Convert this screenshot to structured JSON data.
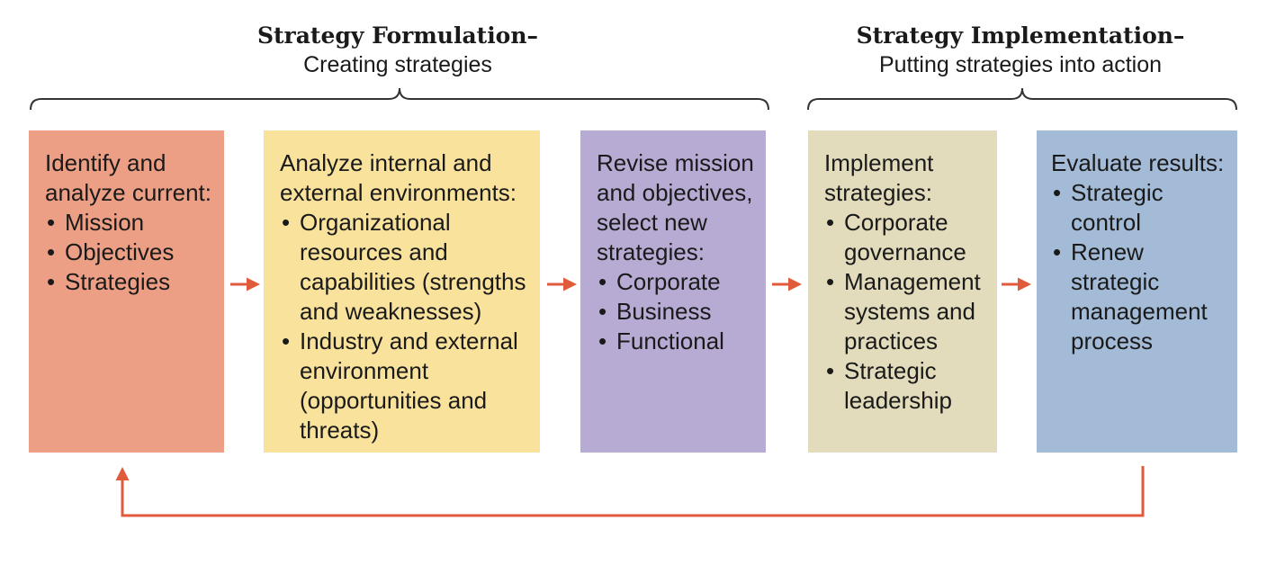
{
  "colors": {
    "arrow": "#e05a3c",
    "brace": "#333333",
    "box_1": "#ec9f84",
    "box_2": "#f9e39c",
    "box_3": "#b7abd4",
    "box_4": "#e2dcbc",
    "box_5": "#a3bbd7"
  },
  "phases": {
    "formulation": {
      "title": "Strategy Formulation–",
      "subtitle": "Creating strategies"
    },
    "implementation": {
      "title": "Strategy Implementation–",
      "subtitle": "Putting strategies into action"
    }
  },
  "steps": [
    {
      "heading": "Identify and\nanalyze current:",
      "items": [
        "Mission",
        "Objectives",
        "Strategies"
      ]
    },
    {
      "heading": "Analyze internal and\nexternal environments:",
      "items": [
        "Organizational resources and capabilities (strengths and weaknesses)",
        "Industry and external environment (opportunities and threats)"
      ]
    },
    {
      "heading": "Revise mission\nand objectives,\nselect new\nstrategies:",
      "items": [
        "Corporate",
        "Business",
        "Functional"
      ]
    },
    {
      "heading": "Implement\nstrategies:",
      "items": [
        "Corporate governance",
        "Management systems and practices",
        "Strategic leadership"
      ]
    },
    {
      "heading": "Evaluate results:",
      "items": [
        "Strategic control",
        "Renew strategic management process"
      ]
    }
  ]
}
